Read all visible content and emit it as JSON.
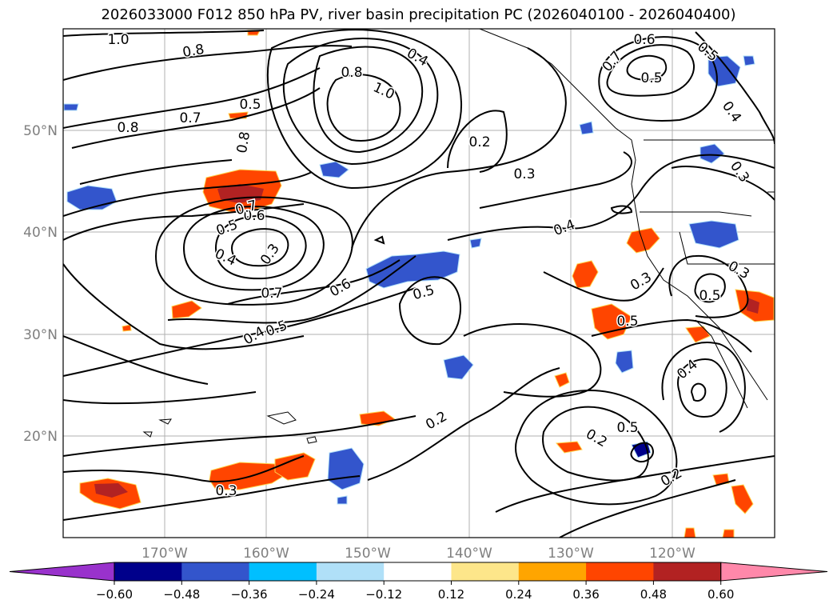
{
  "title": "2026033000 F012 850 hPa PV, river basin precipitation PC (2026040100 - 2026040400)",
  "map": {
    "lat_labels": [
      "50°N",
      "40°N",
      "30°N",
      "20°N"
    ],
    "lon_labels": [
      "170°W",
      "160°W",
      "150°W",
      "140°W",
      "130°W",
      "120°W"
    ],
    "contour_labels": [
      "1.0",
      "0.8",
      "0.5",
      "0.7",
      "0.8",
      "0.8",
      "1.0",
      "0.4",
      "0.6",
      "0.7",
      "0.8",
      "0.5",
      "0.2",
      "0.3",
      "0.7",
      "0.6",
      "0.5",
      "0.5",
      "0.4",
      "0.3",
      "0.4",
      "0.7",
      "0.6",
      "0.5",
      "0.5",
      "0.4",
      "0.3",
      "0.3",
      "0.4",
      "0.5",
      "0.3",
      "0.5",
      "0.4",
      "0.5",
      "0.2",
      "0.2",
      "0.2",
      "0.3"
    ]
  },
  "colorbar": {
    "ticks": [
      "−0.60",
      "−0.48",
      "−0.36",
      "−0.24",
      "−0.12",
      "0.12",
      "0.24",
      "0.36",
      "0.48",
      "0.60"
    ],
    "colors": [
      "#9932cc",
      "#00008b",
      "#3355cc",
      "#00bfff",
      "#b0e0f8",
      "#ffffff",
      "#fde68a",
      "#ffa500",
      "#ff4500",
      "#b22222",
      "#ff88aa"
    ]
  }
}
